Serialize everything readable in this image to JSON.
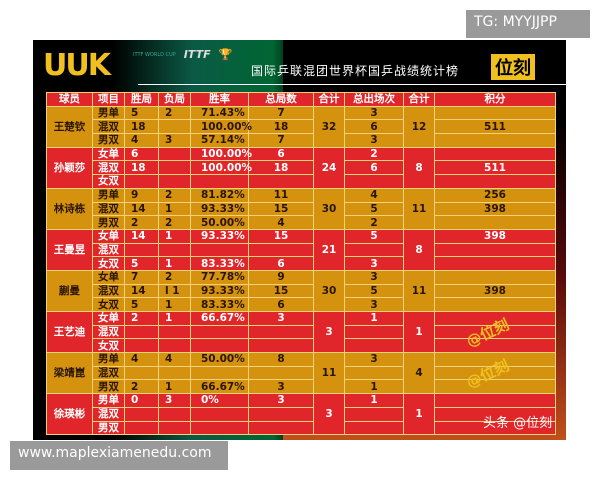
{
  "watermarks": {
    "tg": "TG: MYYJJPP",
    "site": "www.maplexiamenedu.com",
    "toutiao": "头条 @位刻",
    "at1": "@位刻",
    "at2": "@位刻"
  },
  "poster": {
    "logo": "UUK",
    "icon1": "ITTF WORLD CUP",
    "icon2": "ITTF",
    "title": "国际乒联混团世界杯国乒战绩统计榜",
    "brand": "位刻"
  },
  "headers": [
    "球员",
    "项目",
    "胜局",
    "负局",
    "胜率",
    "总局数",
    "合计",
    "总出场次",
    "合计",
    "积分"
  ],
  "players": [
    {
      "name": "王楚钦",
      "total_games": "32",
      "total_apps": "12",
      "rows": [
        [
          "男单",
          "5",
          "2",
          "71.43%",
          "7",
          "3",
          ""
        ],
        [
          "混双",
          "18",
          "",
          "100.00%",
          "18",
          "6",
          "511"
        ],
        [
          "男双",
          "4",
          "3",
          "57.14%",
          "7",
          "3",
          ""
        ]
      ]
    },
    {
      "name": "孙颖莎",
      "total_games": "24",
      "total_apps": "8",
      "rows": [
        [
          "女单",
          "6",
          "",
          "100.00%",
          "6",
          "2",
          ""
        ],
        [
          "混双",
          "18",
          "",
          "100.00%",
          "18",
          "6",
          "511"
        ],
        [
          "女双",
          "",
          "",
          "",
          "",
          "",
          ""
        ]
      ]
    },
    {
      "name": "林诗栋",
      "total_games": "30",
      "total_apps": "11",
      "rows": [
        [
          "男单",
          "9",
          "2",
          "81.82%",
          "11",
          "4",
          "256"
        ],
        [
          "混双",
          "14",
          "1",
          "93.33%",
          "15",
          "5",
          "398"
        ],
        [
          "男双",
          "2",
          "2",
          "50.00%",
          "4",
          "2",
          ""
        ]
      ]
    },
    {
      "name": "王曼昱",
      "total_games": "21",
      "total_apps": "8",
      "rows": [
        [
          "女单",
          "14",
          "1",
          "93.33%",
          "15",
          "5",
          "398"
        ],
        [
          "混双",
          "",
          "",
          "",
          "",
          "",
          ""
        ],
        [
          "女双",
          "5",
          "1",
          "83.33%",
          "6",
          "3",
          ""
        ]
      ]
    },
    {
      "name": "蒯曼",
      "total_games": "30",
      "total_apps": "11",
      "rows": [
        [
          "女单",
          "7",
          "2",
          "77.78%",
          "9",
          "3",
          ""
        ],
        [
          "混双",
          "14",
          "l 1",
          "93.33%",
          "15",
          "5",
          "398"
        ],
        [
          "女双",
          "5",
          "1",
          "83.33%",
          "6",
          "3",
          ""
        ]
      ]
    },
    {
      "name": "王艺迪",
      "total_games": "3",
      "total_apps": "1",
      "rows": [
        [
          "女单",
          "2",
          "1",
          "66.67%",
          "3",
          "1",
          ""
        ],
        [
          "混双",
          "",
          "",
          "",
          "",
          "",
          ""
        ],
        [
          "女双",
          "",
          "",
          "",
          "",
          "",
          ""
        ]
      ]
    },
    {
      "name": "梁靖崑",
      "total_games": "11",
      "total_apps": "4",
      "rows": [
        [
          "男单",
          "4",
          "4",
          "50.00%",
          "8",
          "3",
          ""
        ],
        [
          "混双",
          "",
          "",
          "",
          "",
          "",
          ""
        ],
        [
          "男双",
          "2",
          "1",
          "66.67%",
          "3",
          "1",
          ""
        ]
      ]
    },
    {
      "name": "徐瑛彬",
      "total_games": "3",
      "total_apps": "1",
      "rows": [
        [
          "男单",
          "0",
          "3",
          "0%",
          "3",
          "1",
          ""
        ],
        [
          "混双",
          "",
          "",
          "",
          "",
          "",
          ""
        ],
        [
          "男双",
          "",
          "",
          "",
          "",
          "",
          ""
        ]
      ]
    }
  ],
  "colors": {
    "orange": "#d4920f",
    "red": "#e0262a",
    "gold": "#f0c020"
  }
}
